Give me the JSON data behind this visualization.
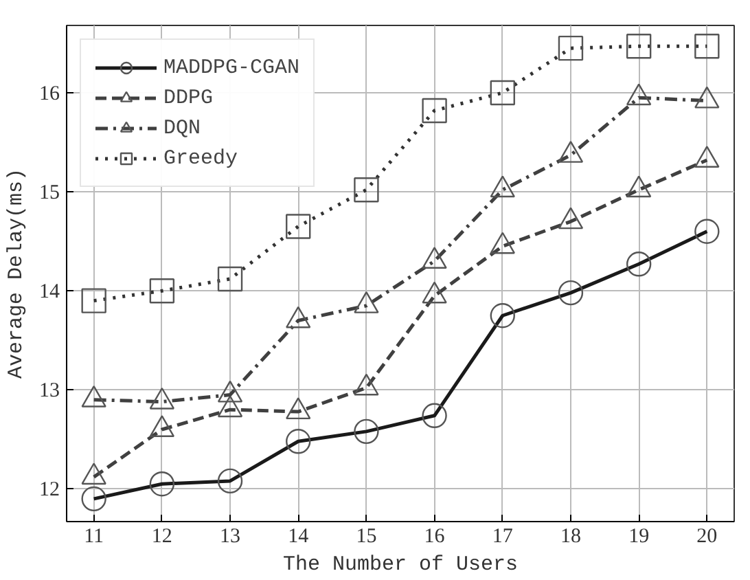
{
  "chart_data": {
    "type": "line",
    "xlabel": "The Number of Users",
    "ylabel": "Average Delay(ms)",
    "x": [
      11,
      12,
      13,
      14,
      15,
      16,
      17,
      18,
      19,
      20
    ],
    "xlim": [
      10.6,
      20.4
    ],
    "xticks": [
      11,
      12,
      13,
      14,
      15,
      16,
      17,
      18,
      19,
      20
    ],
    "ylim": [
      11.67,
      16.68
    ],
    "yticks": [
      12,
      13,
      14,
      15,
      16
    ],
    "grid": true,
    "legend": "top left",
    "series": [
      {
        "name": "MADDPG-CGAN",
        "color": "#1a1a1a",
        "marker": "circle",
        "line_style": "solid",
        "values": [
          11.9,
          12.05,
          12.08,
          12.48,
          12.58,
          12.74,
          13.75,
          13.98,
          14.27,
          14.6
        ]
      },
      {
        "name": "DDPG",
        "color": "#404040",
        "marker": "triangle",
        "line_style": "dashed",
        "values": [
          12.12,
          12.6,
          12.8,
          12.78,
          13.02,
          13.95,
          14.45,
          14.7,
          15.02,
          15.32
        ]
      },
      {
        "name": "DQN",
        "color": "#404040",
        "marker": "triangle",
        "line_style": "dashdot",
        "values": [
          12.9,
          12.88,
          12.95,
          13.7,
          13.85,
          14.3,
          15.02,
          15.37,
          15.95,
          15.92
        ]
      },
      {
        "name": "Greedy",
        "color": "#333333",
        "marker": "square",
        "line_style": "dotted",
        "values": [
          13.9,
          14.0,
          14.12,
          14.65,
          15.02,
          15.82,
          16.0,
          16.45,
          16.47,
          16.47
        ]
      }
    ]
  }
}
